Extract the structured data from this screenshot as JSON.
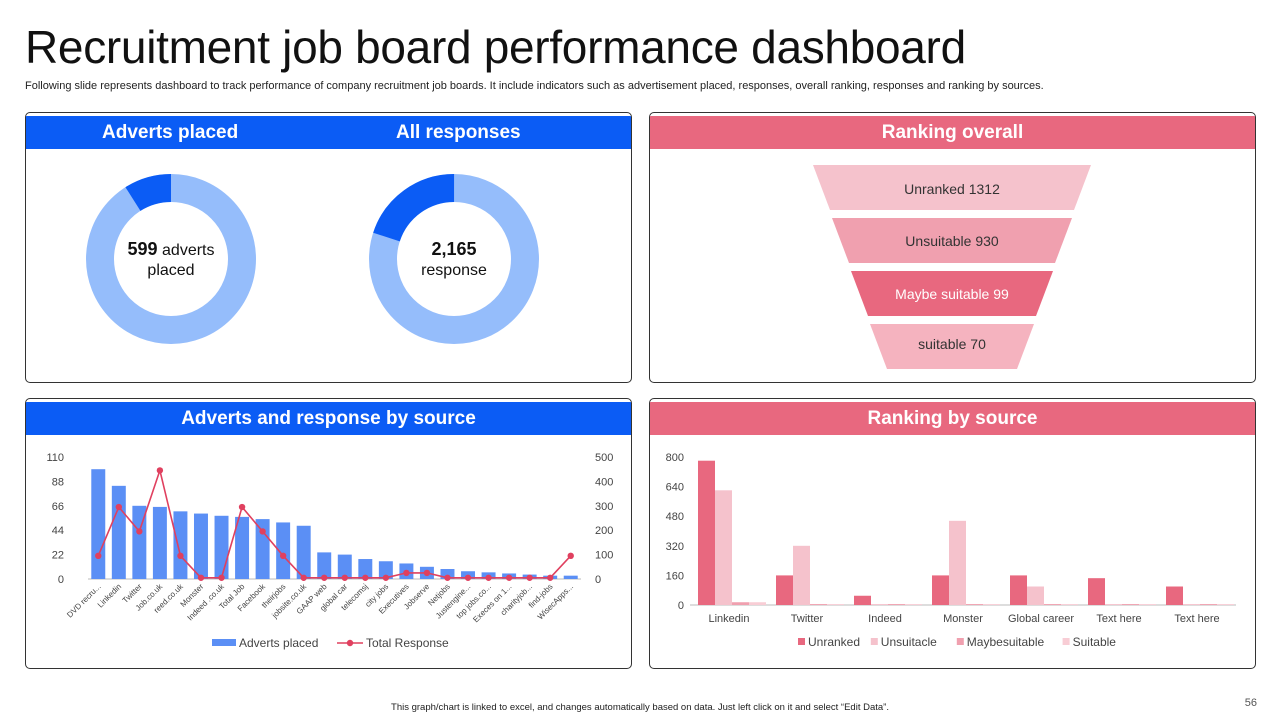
{
  "header": {
    "title": "Recruitment job board performance dashboard",
    "subtitle": "Following slide represents dashboard to track performance of company recruitment job boards. It include indicators such as advertisement placed, responses, overall ranking, responses and ranking by sources."
  },
  "panels": {
    "adverts_placed": "Adverts placed",
    "all_responses": "All responses",
    "ranking_overall": "Ranking overall",
    "adverts_response_by_source": "Adverts and response by source",
    "ranking_by_source": "Ranking by source"
  },
  "donuts": {
    "adverts": {
      "value": "599",
      "label_1": "adverts",
      "label_2": "placed",
      "fraction": 0.09,
      "color_main": "#95bdfb",
      "color_slice": "#0b5cf5"
    },
    "responses": {
      "value": "2,165",
      "label": "response",
      "fraction": 0.2,
      "color_main": "#95bdfb",
      "color_slice": "#0b5cf5"
    }
  },
  "funnel": [
    {
      "label": "Unranked 1312",
      "color": "#f5c2cc",
      "text_color": "#333333"
    },
    {
      "label": "Unsuitable 930",
      "color": "#f0a0af",
      "text_color": "#333333"
    },
    {
      "label": "Maybe suitable 99",
      "color": "#e8687f",
      "text_color": "#ffffff"
    },
    {
      "label": "suitable 70",
      "color": "#f5b3bf",
      "text_color": "#333333"
    }
  ],
  "chart_data": [
    {
      "type": "bar",
      "combo": "bar-line-dual-axis",
      "categories": [
        "DVD recru...",
        "Linkedin",
        "Twitter",
        "Job.co.uk",
        "reed.co.uk",
        "Monster",
        "Indeed .co.uk",
        "Total Job",
        "Facebook",
        "theirjobs",
        "jobsite.co.uk",
        "GAAP web",
        "global car",
        "telecomsj",
        "city jobs",
        "Executives",
        "Jobserve",
        "Netjobs",
        "Justengine...",
        "top jobs.co...",
        "Execes on 1...",
        "charityjob...",
        "find-jobs",
        "WisecApps..."
      ],
      "series": [
        {
          "name": "Adverts placed",
          "type": "bar",
          "axis": "left",
          "color": "#5b8ff5",
          "values": [
            99,
            84,
            66,
            65,
            61,
            59,
            57,
            56,
            54,
            51,
            48,
            24,
            22,
            18,
            16,
            14,
            11,
            9,
            7,
            6,
            5,
            4,
            3,
            3
          ]
        },
        {
          "name": "Total Response",
          "type": "line",
          "axis": "right",
          "color": "#e0405f",
          "values": [
            95,
            295,
            195,
            445,
            95,
            5,
            5,
            295,
            195,
            95,
            5,
            5,
            5,
            5,
            5,
            25,
            25,
            5,
            5,
            5,
            5,
            5,
            5,
            95
          ]
        }
      ],
      "y_left": {
        "ticks": [
          0,
          22,
          44,
          66,
          88,
          110
        ],
        "ylim": [
          0,
          110
        ]
      },
      "y_right": {
        "ticks": [
          0,
          100,
          200,
          300,
          400,
          500
        ],
        "ylim": [
          0,
          500
        ]
      },
      "legend": [
        "Adverts placed",
        "Total Response"
      ],
      "legend_position": "bottom"
    },
    {
      "type": "bar",
      "categories": [
        "Linkedin",
        "Twitter",
        "Indeed",
        "Monster",
        "Global career",
        "Text here",
        "Text here"
      ],
      "series": [
        {
          "name": "Unranked",
          "color": "#e8687f",
          "values": [
            780,
            160,
            50,
            160,
            160,
            145,
            100
          ]
        },
        {
          "name": "Unsuitacle",
          "color": "#f5c2cc",
          "values": [
            620,
            320,
            5,
            455,
            100,
            5,
            5
          ]
        },
        {
          "name": "Maybesuitable",
          "color": "#f0a0af",
          "values": [
            15,
            5,
            5,
            5,
            5,
            5,
            5
          ]
        },
        {
          "name": "Suitable",
          "color": "#f8cdd5",
          "values": [
            15,
            5,
            5,
            5,
            5,
            5,
            5
          ]
        }
      ],
      "y_ticks": [
        0,
        160,
        320,
        480,
        640,
        800
      ],
      "ylim": [
        0,
        800
      ],
      "legend": [
        "Unranked",
        "Unsuitacle",
        "Maybesuitable",
        "Suitable"
      ],
      "legend_position": "bottom"
    }
  ],
  "footer": {
    "note": "This graph/chart is linked to excel, and changes automatically based on data. Just left click on it and select “Edit Data”.",
    "page": "56"
  }
}
